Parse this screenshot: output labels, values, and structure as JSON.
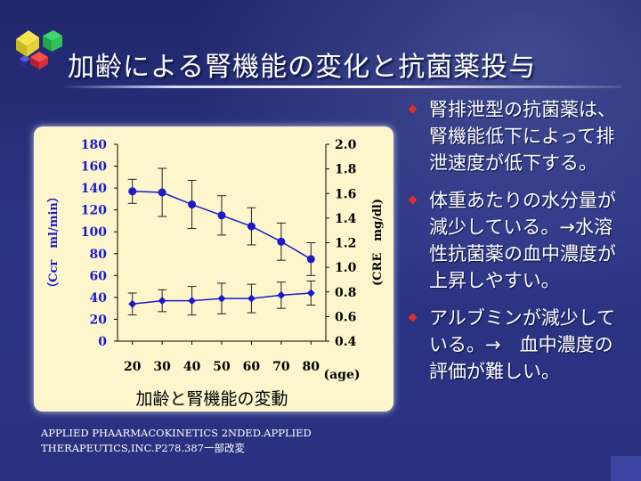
{
  "slide": {
    "title": "加齢による腎機能の変化と抗菌薬投与",
    "citation": "APPLIED PHAARMACOKINETICS 2NDED.APPLIED THERAPEUTICS,INC.P278.387一部改変"
  },
  "bullets": [
    {
      "text": "腎排泄型の抗菌薬は、腎機能低下によって排泄速度が低下する。"
    },
    {
      "text": "体重あたりの水分量が減少している。→水溶性抗菌薬の血中濃度が上昇しやすい。"
    },
    {
      "text": "アルブミンが減少している。→　血中濃度の評価が難しい。"
    }
  ],
  "colors": {
    "series": "#1a1ac8",
    "bullet": "#e0302c",
    "panel": "#fdf6cc"
  },
  "chart_data": {
    "type": "line",
    "title": "加齢と腎機能の変動",
    "xlabel": "(age)",
    "ylabel_left": "（Ccr　ml/min）",
    "ylabel_right": "(CRE　mg/dl)",
    "x": [
      20,
      30,
      40,
      50,
      60,
      70,
      80
    ],
    "x_ticks": [
      "20",
      "30",
      "40",
      "50",
      "60",
      "70",
      "80"
    ],
    "ylim_left": [
      0,
      180
    ],
    "y_ticks_left": [
      "0",
      "20",
      "40",
      "60",
      "80",
      "100",
      "120",
      "140",
      "160",
      "180"
    ],
    "ylim_right": [
      0.4,
      2.0
    ],
    "y_ticks_right": [
      "0.4",
      "0.6",
      "0.8",
      "1.0",
      "1.2",
      "1.4",
      "1.6",
      "1.8",
      "2.0"
    ],
    "grid": false,
    "series": [
      {
        "axis": "left",
        "marker": "circle",
        "values": [
          137,
          136,
          125,
          115,
          105,
          91,
          75
        ],
        "error": [
          11,
          22,
          22,
          18,
          17,
          17,
          15
        ]
      },
      {
        "axis": "left",
        "marker": "diamond",
        "values": [
          34,
          37,
          37,
          39,
          39,
          42,
          44
        ],
        "error": [
          10,
          10,
          13,
          14,
          13,
          12,
          11
        ]
      }
    ]
  }
}
